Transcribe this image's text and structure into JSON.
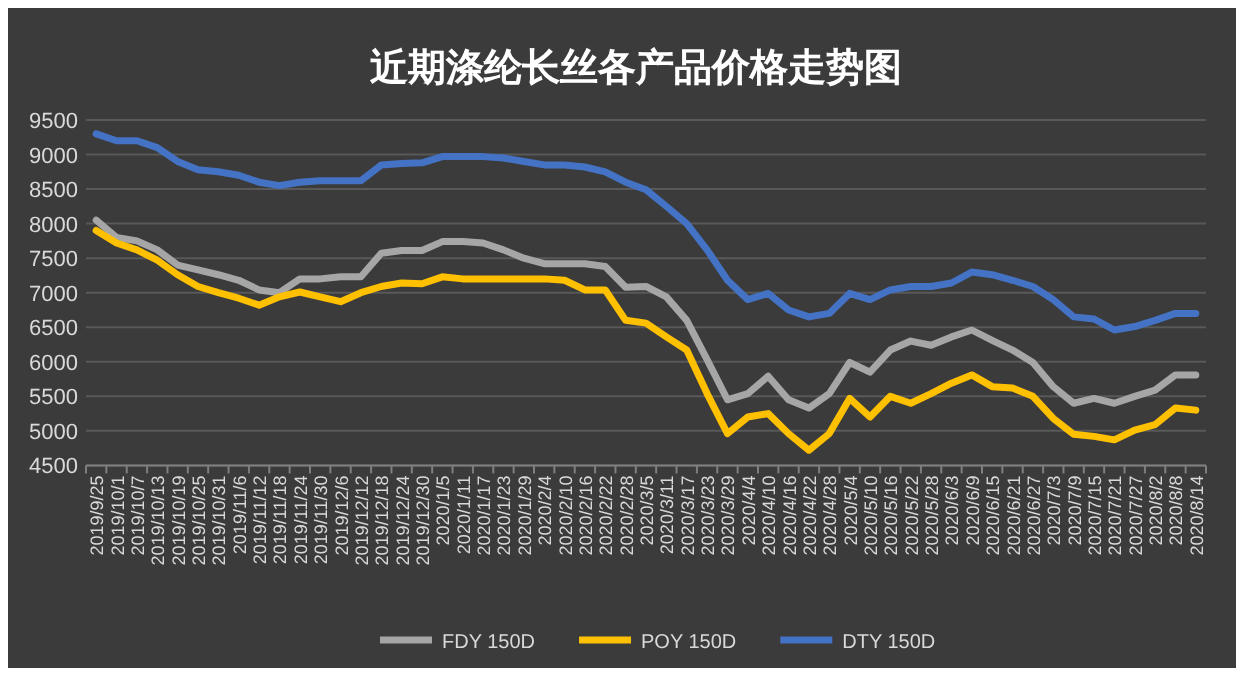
{
  "chart_data": {
    "type": "line",
    "title": "近期涤纶长丝各产品价格走势图",
    "categories": [
      "2019/9/25",
      "2019/10/1",
      "2019/10/7",
      "2019/10/13",
      "2019/10/19",
      "2019/10/25",
      "2019/10/31",
      "2019/11/6",
      "2019/11/12",
      "2019/11/18",
      "2019/11/24",
      "2019/11/30",
      "2019/12/6",
      "2019/12/12",
      "2019/12/18",
      "2019/12/24",
      "2019/12/30",
      "2020/1/5",
      "2020/1/11",
      "2020/1/17",
      "2020/1/23",
      "2020/1/29",
      "2020/2/4",
      "2020/2/10",
      "2020/2/16",
      "2020/2/22",
      "2020/2/28",
      "2020/3/5",
      "2020/3/11",
      "2020/3/17",
      "2020/3/23",
      "2020/3/29",
      "2020/4/4",
      "2020/4/10",
      "2020/4/16",
      "2020/4/22",
      "2020/4/28",
      "2020/5/4",
      "2020/5/10",
      "2020/5/16",
      "2020/5/22",
      "2020/5/28",
      "2020/6/3",
      "2020/6/9",
      "2020/6/15",
      "2020/6/21",
      "2020/6/27",
      "2020/7/3",
      "2020/7/9",
      "2020/7/15",
      "2020/7/21",
      "2020/7/27",
      "2020/8/2",
      "2020/8/8",
      "2020/8/14"
    ],
    "series": [
      {
        "name": "FDY 150D",
        "color": "#a6a6a6",
        "values": [
          8050,
          7800,
          7750,
          7620,
          7400,
          7330,
          7260,
          7180,
          7040,
          7000,
          7200,
          7200,
          7230,
          7230,
          7570,
          7610,
          7610,
          7740,
          7740,
          7720,
          7620,
          7500,
          7420,
          7420,
          7420,
          7380,
          7080,
          7090,
          6940,
          6600,
          6030,
          5450,
          5540,
          5790,
          5450,
          5330,
          5540,
          5990,
          5850,
          6170,
          6300,
          6240,
          6360,
          6460,
          6310,
          6170,
          5990,
          5640,
          5400,
          5470,
          5400,
          5500,
          5590,
          5810,
          5810
        ]
      },
      {
        "name": "POY 150D",
        "color": "#ffc000",
        "values": [
          7900,
          7720,
          7620,
          7470,
          7260,
          7090,
          7000,
          6920,
          6820,
          6940,
          7010,
          6940,
          6870,
          7000,
          7090,
          7140,
          7130,
          7230,
          7200,
          7200,
          7200,
          7200,
          7200,
          7180,
          7040,
          7040,
          6600,
          6560,
          6360,
          6170,
          5540,
          4960,
          5200,
          5250,
          4960,
          4720,
          4960,
          5470,
          5200,
          5500,
          5400,
          5540,
          5690,
          5810,
          5640,
          5620,
          5500,
          5180,
          4950,
          4920,
          4870,
          5010,
          5090,
          5330,
          5300
        ]
      },
      {
        "name": "DTY 150D",
        "color": "#4472c4",
        "values": [
          9300,
          9200,
          9200,
          9100,
          8900,
          8780,
          8750,
          8700,
          8600,
          8550,
          8600,
          8620,
          8620,
          8620,
          8850,
          8870,
          8880,
          8970,
          8970,
          8970,
          8950,
          8900,
          8850,
          8850,
          8820,
          8750,
          8600,
          8490,
          8250,
          8000,
          7620,
          7180,
          6900,
          6990,
          6750,
          6650,
          6700,
          6990,
          6900,
          7040,
          7090,
          7090,
          7140,
          7300,
          7260,
          7180,
          7090,
          6900,
          6650,
          6620,
          6460,
          6510,
          6600,
          6700,
          6700
        ]
      }
    ],
    "ylim": [
      4500,
      9500
    ],
    "yticks": [
      4500,
      5000,
      5500,
      6000,
      6500,
      7000,
      7500,
      8000,
      8500,
      9000,
      9500
    ],
    "grid": "y",
    "legend": "bottom"
  }
}
